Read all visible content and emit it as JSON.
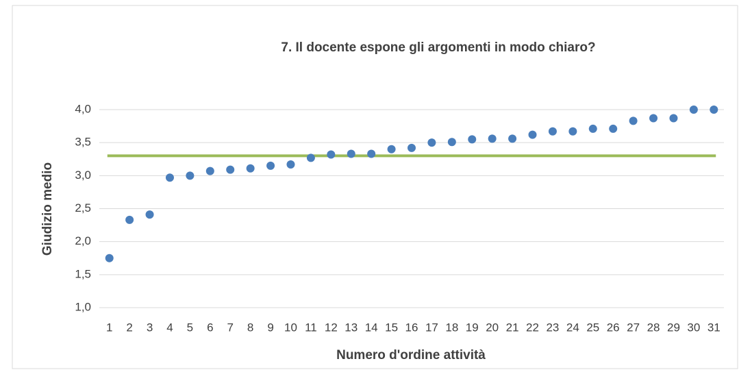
{
  "chart_data": {
    "type": "scatter",
    "title": "7. Il docente espone gli argomenti in modo chiaro?",
    "x_label": "Numero d'ordine attività",
    "y_label": "Giudizio medio",
    "categories": [
      "1",
      "2",
      "3",
      "4",
      "5",
      "6",
      "7",
      "8",
      "9",
      "10",
      "11",
      "12",
      "13",
      "14",
      "15",
      "16",
      "17",
      "18",
      "19",
      "20",
      "21",
      "22",
      "23",
      "24",
      "25",
      "26",
      "27",
      "28",
      "29",
      "30",
      "31"
    ],
    "values": [
      1.75,
      2.33,
      2.41,
      2.97,
      3.0,
      3.07,
      3.09,
      3.11,
      3.15,
      3.17,
      3.27,
      3.32,
      3.33,
      3.33,
      3.4,
      3.42,
      3.5,
      3.51,
      3.55,
      3.56,
      3.56,
      3.62,
      3.67,
      3.67,
      3.71,
      3.71,
      3.83,
      3.87,
      3.87,
      4.0,
      4.0
    ],
    "color": "#4a7ebb",
    "mean_line": {
      "value": 3.3,
      "color": "#9bbb59"
    },
    "ylim": [
      1,
      4
    ],
    "yticks": [
      {
        "value": 1,
        "label": "1,0"
      },
      {
        "value": 1.5,
        "label": "1,5"
      },
      {
        "value": 2,
        "label": "2,0"
      },
      {
        "value": 2.5,
        "label": "2,5"
      },
      {
        "value": 3,
        "label": "3,0"
      },
      {
        "value": 3.5,
        "label": "3,5"
      },
      {
        "value": 4,
        "label": "4,0"
      }
    ],
    "grid": true
  }
}
